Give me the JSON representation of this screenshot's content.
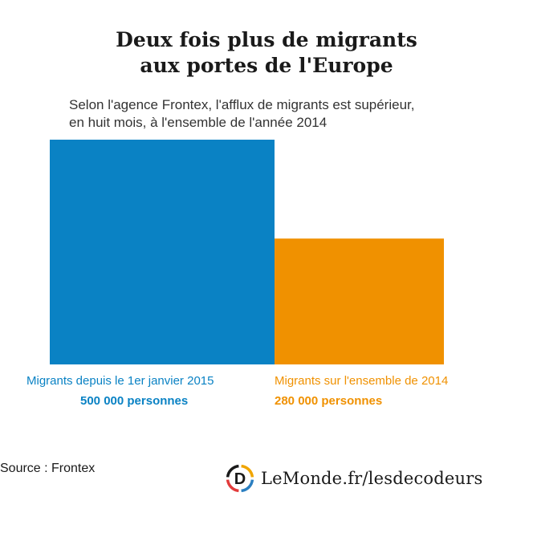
{
  "title": {
    "line1": "Deux fois plus de migrants",
    "line2": "aux portes de l'Europe"
  },
  "subtitle": {
    "line1": "Selon l'agence Frontex, l'afflux de migrants est supérieur,",
    "line2": "en huit mois, à l'ensemble de l'année 2014"
  },
  "chart_data": {
    "type": "bar",
    "categories": [
      "Migrants depuis le 1er janvier 2015",
      "Migrants sur l'ensemble de 2014"
    ],
    "values": [
      500000,
      280000
    ],
    "value_labels": [
      "500 000 personnes",
      "280 000 personnes"
    ],
    "colors": [
      "#0a82c4",
      "#f09100"
    ],
    "ylim": [
      0,
      500000
    ],
    "grid": false,
    "legend": "none"
  },
  "source": "Source : Frontex",
  "brand": {
    "logo_letter": "D",
    "text": "LeMonde.fr/lesdecodeurs",
    "logo_colors": [
      "#f0a500",
      "#2b7fc1",
      "#e23b3b",
      "#1a1a1a"
    ]
  }
}
